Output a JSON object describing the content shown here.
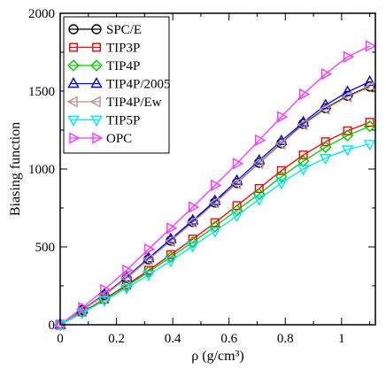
{
  "chart_data": {
    "type": "line",
    "xlabel": "ρ (g/cm³)",
    "ylabel": "Biasing function",
    "xlim": [
      0,
      1.12
    ],
    "ylim": [
      0,
      2000
    ],
    "xticks": [
      0,
      0.2,
      0.4,
      0.6,
      0.8,
      1.0
    ],
    "xtick_labels": [
      "0",
      "0.2",
      "0.4",
      "0.6",
      "0.8",
      "1"
    ],
    "yticks": [
      0,
      500,
      1000,
      1500,
      2000
    ],
    "ytick_labels": [
      "0",
      "500",
      "1000",
      "1500",
      "2000"
    ],
    "grid": false,
    "legend_position": "top-left",
    "x": [
      0,
      0.0786,
      0.157,
      0.236,
      0.314,
      0.393,
      0.471,
      0.55,
      0.628,
      0.707,
      0.786,
      0.864,
      0.943,
      1.021,
      1.1
    ],
    "series": [
      {
        "name": "SPC/E",
        "color": "#000000",
        "marker": "circle",
        "values": [
          0,
          95,
          190,
          300,
          420,
          540,
          660,
          785,
          910,
          1040,
          1165,
          1290,
          1390,
          1470,
          1530
        ]
      },
      {
        "name": "TIP3P",
        "color": "#ff0000",
        "marker": "square",
        "values": [
          0,
          82,
          165,
          255,
          350,
          450,
          550,
          655,
          765,
          875,
          990,
          1090,
          1175,
          1245,
          1300
        ]
      },
      {
        "name": "TIP4P",
        "color": "#00d000",
        "marker": "diamond",
        "values": [
          0,
          80,
          160,
          248,
          340,
          435,
          530,
          630,
          735,
          840,
          950,
          1050,
          1140,
          1215,
          1275
        ]
      },
      {
        "name": "TIP4P/2005",
        "color": "#0000ff",
        "marker": "triangle-up",
        "values": [
          0,
          97,
          195,
          305,
          428,
          550,
          670,
          795,
          925,
          1055,
          1180,
          1300,
          1410,
          1495,
          1560
        ]
      },
      {
        "name": "TIP4P/Ew",
        "color": "#bc8f8f",
        "marker": "triangle-left",
        "values": [
          0,
          95,
          190,
          300,
          420,
          538,
          658,
          783,
          908,
          1038,
          1162,
          1285,
          1385,
          1465,
          1525
        ]
      },
      {
        "name": "TIP5P",
        "color": "#00e5ff",
        "marker": "triangle-down",
        "values": [
          0,
          75,
          155,
          235,
          320,
          410,
          505,
          600,
          700,
          805,
          910,
          1000,
          1070,
          1125,
          1160
        ]
      },
      {
        "name": "OPC",
        "color": "#ff33ff",
        "marker": "triangle-right",
        "values": [
          0,
          110,
          225,
          350,
          485,
          620,
          755,
          895,
          1035,
          1185,
          1335,
          1480,
          1610,
          1720,
          1790
        ]
      }
    ]
  }
}
